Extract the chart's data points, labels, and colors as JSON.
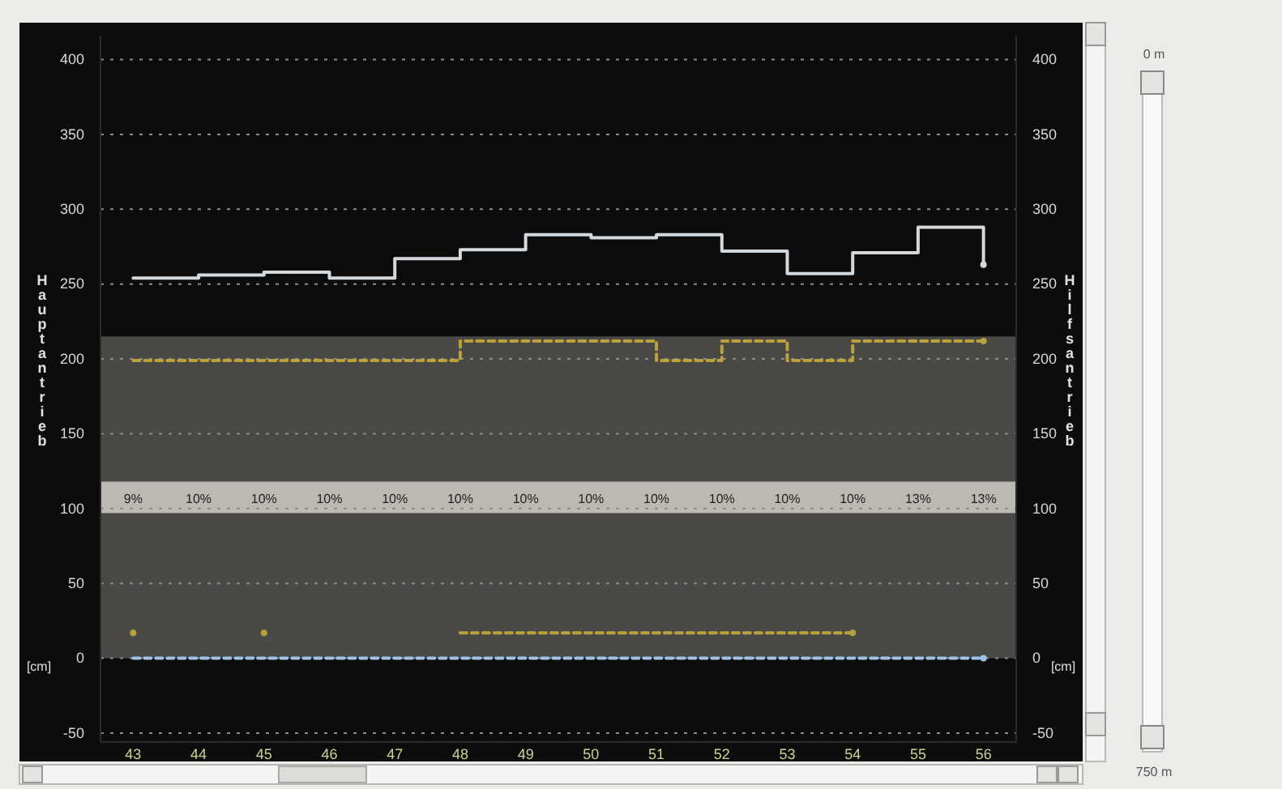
{
  "chart_data": {
    "type": "step",
    "ylabel": "Hauptantrieb",
    "y2label": "Hilfsantrieb",
    "categories": [
      "43",
      "44",
      "45",
      "46",
      "47",
      "48",
      "49",
      "50",
      "51",
      "52",
      "53",
      "54",
      "55",
      "56"
    ],
    "ylim": [
      -56,
      416
    ],
    "yticks": [
      -50,
      0,
      50,
      100,
      150,
      200,
      250,
      300,
      350,
      400
    ],
    "y2lim": [
      -56,
      416
    ],
    "y2ticks": [
      -50,
      0,
      50,
      100,
      150,
      200,
      250,
      300,
      350,
      400
    ],
    "grid": "y",
    "bands": [
      {
        "axis": "y",
        "from": 0,
        "to": 215,
        "color": "#4b4946"
      },
      {
        "axis": "y",
        "from": 97,
        "to": 118,
        "color": "#bcb9b2"
      }
    ],
    "series": [
      {
        "color": "#d3d8dc",
        "line_style": "solid",
        "values": [
          254,
          256,
          258,
          254,
          267,
          273,
          283,
          281,
          283,
          272,
          257,
          271,
          288,
          263
        ]
      },
      {
        "color": "#b8a23e",
        "line_style": "dashed",
        "values": [
          199,
          199,
          199,
          199,
          199,
          212,
          212,
          212,
          199,
          212,
          199,
          212,
          212,
          212
        ]
      },
      {
        "color": "#b8a23e",
        "line_style": "dashed",
        "values": [
          17,
          null,
          17,
          null,
          null,
          17,
          17,
          17,
          17,
          17,
          17,
          17,
          null,
          null
        ]
      },
      {
        "color": "#9ec3e6",
        "line_style": "dashed",
        "values": [
          0,
          0,
          0,
          0,
          0,
          0,
          0,
          0,
          0,
          0,
          0,
          0,
          0,
          0
        ]
      }
    ],
    "annotations": [
      "[cm]",
      "[cm]",
      "0 m",
      "750 m",
      "9%",
      "10%",
      "10%",
      "10%",
      "10%",
      "10%",
      "10%",
      "10%",
      "10%",
      "10%",
      "10%",
      "10%",
      "13%",
      "13%"
    ]
  }
}
